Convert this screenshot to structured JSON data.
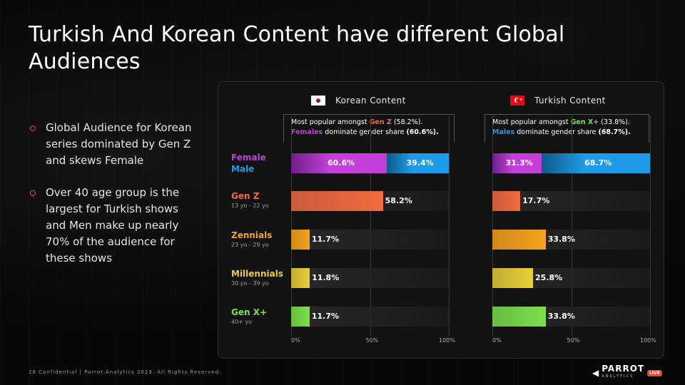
{
  "title": "Turkish And Korean Content have different Global Audiences",
  "bullets": [
    "Global Audience for Korean series dominated by Gen Z and skews Female",
    "Over 40 age group is the largest for Turkish shows and Men make up nearly 70% of the audience for these shows"
  ],
  "footer": "28  Confidential  |  Parrot Analytics 2023. All Rights Reserved.",
  "logo": {
    "name": "PARROT",
    "sub": "ANALYTICS",
    "badge": "LIVE"
  },
  "colors": {
    "female": "#c43fd9",
    "male": "#1e9be8",
    "gen_z": "#f26a3f",
    "zennials": "#f7a21b",
    "millennials": "#e9cf35",
    "gen_x": "#7be04a",
    "accent": "#e8462c"
  },
  "panel": {
    "korean": {
      "header": "Korean Content",
      "flag_icon": "south-korea-flag-icon",
      "note": {
        "line1_pre": "Most popular amongst ",
        "line1_hl": "Gen Z",
        "line1_post": " (58.2%).",
        "line2_hl": "Females",
        "line2_post": " dominate gender share ",
        "line2_val": "(60.6%)."
      }
    },
    "turkish": {
      "header": "Turkish Content",
      "flag_icon": "turkey-flag-icon",
      "note": {
        "line1_pre": "Most popular amongst ",
        "line1_hl": "Gen X+",
        "line1_post": " (33.8%).",
        "line2_hl": "Males",
        "line2_post": " dominate gender share ",
        "line2_val": "(68.7%)."
      }
    },
    "rows": [
      {
        "label": "Female",
        "label2": "Male",
        "sub": ""
      },
      {
        "label": "Gen Z",
        "sub": "13 yo - 22 yo"
      },
      {
        "label": "Zennials",
        "sub": "23 yo - 29 yo"
      },
      {
        "label": "Millennials",
        "sub": "30 yo - 39 yo"
      },
      {
        "label": "Gen X+",
        "sub": "40+ yo"
      }
    ],
    "ticks": [
      "0%",
      "50%",
      "100%"
    ]
  },
  "chart_data": {
    "type": "bar",
    "xlim": [
      0,
      100
    ],
    "categories": [
      "Female / Male",
      "Gen Z",
      "Zennials",
      "Millennials",
      "Gen X+"
    ],
    "series": [
      {
        "name": "Korean Content",
        "gender": {
          "female": 60.6,
          "male": 39.4
        },
        "age": [
          58.2,
          11.7,
          11.8,
          11.7
        ]
      },
      {
        "name": "Turkish Content",
        "gender": {
          "female": 31.3,
          "male": 68.7
        },
        "age": [
          17.7,
          33.8,
          25.8,
          33.8
        ]
      }
    ],
    "value_labels": {
      "korean": [
        "60.6%",
        "39.4%",
        "58.2%",
        "11.7%",
        "11.8%",
        "11.7%"
      ],
      "turkish": [
        "31.3%",
        "68.7%",
        "17.7%",
        "33.8%",
        "25.8%",
        "33.8%"
      ]
    }
  }
}
